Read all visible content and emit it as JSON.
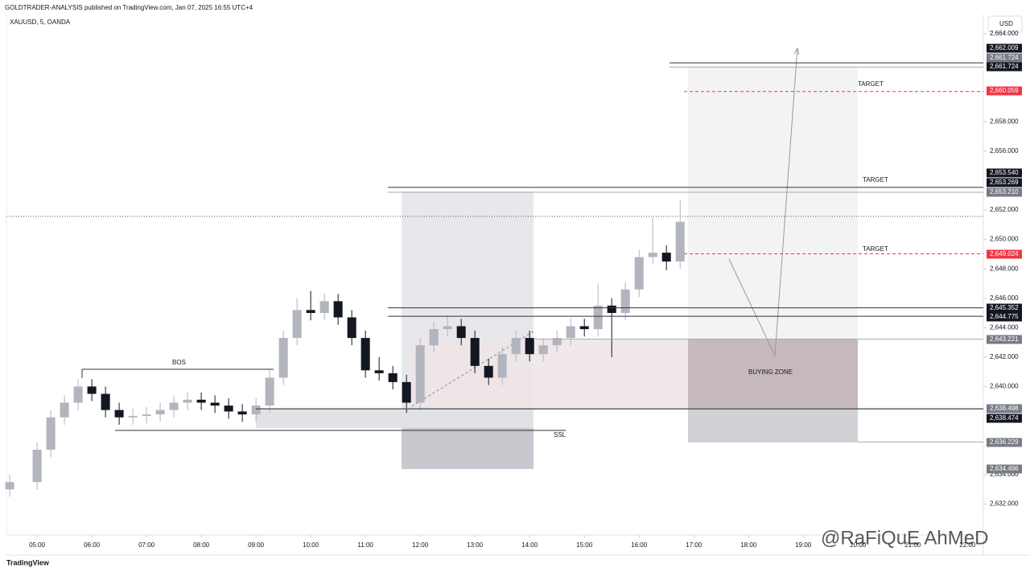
{
  "header": {
    "publisher": "GOLDTRADER-ANALYSIS published on TradingView.com, Jan 07, 2025 16:55 UTC+4",
    "symbol": "XAUUSD, 5, OANDA",
    "currency": "USD"
  },
  "chart_data": {
    "type": "candlestick",
    "x": [
      4.5,
      5,
      5.25,
      5.5,
      5.75,
      6,
      6.25,
      6.5,
      6.75,
      7,
      7.25,
      7.5,
      7.75,
      8,
      8.25,
      8.5,
      8.75,
      9,
      9.25,
      9.5,
      9.75,
      10,
      10.25,
      10.5,
      10.75,
      11,
      11.25,
      11.5,
      11.75,
      12,
      12.25,
      12.5,
      12.75,
      13,
      13.25,
      13.5,
      13.75,
      14,
      14.25,
      14.5,
      14.75,
      15,
      15.25,
      15.5,
      15.75,
      16,
      16.25,
      16.5,
      16.75
    ],
    "open": [
      2633.0,
      2633.5,
      2635.7,
      2637.9,
      2638.9,
      2640.0,
      2639.5,
      2638.4,
      2637.9,
      2638.0,
      2638.1,
      2638.4,
      2638.9,
      2639.1,
      2638.9,
      2638.7,
      2638.3,
      2638.1,
      2638.7,
      2640.6,
      2643.3,
      2645.2,
      2645.0,
      2645.8,
      2644.7,
      2643.3,
      2641.1,
      2640.9,
      2640.3,
      2638.9,
      2642.8,
      2643.9,
      2644.1,
      2643.3,
      2641.4,
      2640.6,
      2642.2,
      2643.3,
      2642.2,
      2642.8,
      2643.3,
      2644.1,
      2643.9,
      2645.5,
      2645.0,
      2646.6,
      2648.8,
      2649.1,
      2648.5
    ],
    "high": [
      2634.0,
      2636.2,
      2638.4,
      2639.4,
      2640.5,
      2640.5,
      2640.0,
      2638.9,
      2638.5,
      2638.6,
      2638.9,
      2639.4,
      2639.6,
      2639.6,
      2639.4,
      2639.2,
      2638.8,
      2639.2,
      2641.1,
      2643.8,
      2646.0,
      2646.5,
      2646.3,
      2646.3,
      2645.2,
      2643.8,
      2642.0,
      2641.4,
      2640.8,
      2643.3,
      2644.4,
      2644.8,
      2644.6,
      2643.8,
      2641.9,
      2642.7,
      2643.8,
      2643.8,
      2643.3,
      2643.8,
      2644.6,
      2644.6,
      2647.0,
      2646.0,
      2647.1,
      2649.3,
      2651.5,
      2649.6,
      2652.7
    ],
    "low": [
      2632.5,
      2633.0,
      2635.2,
      2637.4,
      2638.4,
      2639.0,
      2637.9,
      2637.4,
      2637.4,
      2637.5,
      2637.6,
      2637.9,
      2638.4,
      2638.4,
      2638.2,
      2637.8,
      2637.6,
      2637.6,
      2638.2,
      2640.1,
      2642.8,
      2644.5,
      2644.5,
      2644.2,
      2642.8,
      2640.6,
      2640.4,
      2639.8,
      2638.2,
      2638.4,
      2642.3,
      2643.4,
      2642.8,
      2640.9,
      2640.1,
      2640.1,
      2641.7,
      2641.7,
      2641.7,
      2642.3,
      2642.8,
      2643.4,
      2643.4,
      2642.0,
      2644.5,
      2646.1,
      2648.3,
      2647.9,
      2648.0
    ],
    "close": [
      2633.5,
      2635.7,
      2637.9,
      2638.9,
      2640.0,
      2639.5,
      2638.4,
      2637.9,
      2638.0,
      2638.1,
      2638.4,
      2638.9,
      2639.1,
      2638.9,
      2638.7,
      2638.3,
      2638.1,
      2638.7,
      2640.6,
      2643.3,
      2645.2,
      2645.0,
      2645.8,
      2644.7,
      2643.3,
      2641.1,
      2640.9,
      2640.3,
      2638.9,
      2642.8,
      2643.9,
      2644.1,
      2643.3,
      2641.4,
      2640.6,
      2642.2,
      2643.3,
      2642.2,
      2642.8,
      2643.3,
      2644.1,
      2643.9,
      2645.5,
      2645.0,
      2646.6,
      2648.8,
      2649.1,
      2648.5,
      2651.2
    ],
    "up_color": "#b2b5be",
    "down_color": "#131722",
    "xlim": [
      4.44,
      22.29
    ],
    "xticks": [
      {
        "value": 5,
        "label": "05:00"
      },
      {
        "value": 6,
        "label": "06:00"
      },
      {
        "value": 7,
        "label": "07:00"
      },
      {
        "value": 8,
        "label": "08:00"
      },
      {
        "value": 9,
        "label": "09:00"
      },
      {
        "value": 10,
        "label": "10:00"
      },
      {
        "value": 11,
        "label": "11:00"
      },
      {
        "value": 12,
        "label": "12:00"
      },
      {
        "value": 13,
        "label": "13:00"
      },
      {
        "value": 14,
        "label": "14:00"
      },
      {
        "value": 15,
        "label": "15:00"
      },
      {
        "value": 16,
        "label": "16:00"
      },
      {
        "value": 17,
        "label": "17:00"
      },
      {
        "value": 18,
        "label": "18:00"
      },
      {
        "value": 19,
        "label": "19:00"
      },
      {
        "value": 20,
        "label": "20:00"
      },
      {
        "value": 21,
        "label": "21:00"
      },
      {
        "value": 22,
        "label": "22:00"
      }
    ],
    "ylim": [
      2629.9,
      2665.3
    ],
    "yticks": [
      {
        "value": 2632,
        "label": "2,632.000"
      },
      {
        "value": 2634,
        "label": "2,634.000"
      },
      {
        "value": 2640,
        "label": "2,640.000"
      },
      {
        "value": 2642,
        "label": "2,642.000"
      },
      {
        "value": 2644,
        "label": "2,644.000"
      },
      {
        "value": 2646,
        "label": "2,646.000"
      },
      {
        "value": 2648,
        "label": "2,648.000"
      },
      {
        "value": 2650,
        "label": "2,650.000"
      },
      {
        "value": 2652,
        "label": "2,652.000"
      },
      {
        "value": 2656,
        "label": "2,656.000"
      },
      {
        "value": 2658,
        "label": "2,658.000"
      },
      {
        "value": 2664,
        "label": "2,664.000"
      }
    ],
    "price_labels": [
      {
        "value": 2662.009,
        "label": "2,662.009",
        "color": "#131722"
      },
      {
        "value": 2661.724,
        "label": "2,661.724",
        "color": "#787b86"
      },
      {
        "value": 2661.724,
        "label": "2,661.724",
        "color": "#131722"
      },
      {
        "value": 2660.059,
        "label": "2,660.059",
        "color": "#f23645"
      },
      {
        "value": 2653.54,
        "label": "2,653.540",
        "color": "#131722"
      },
      {
        "value": 2653.269,
        "label": "2,653.269",
        "color": "#131722"
      },
      {
        "value": 2653.21,
        "label": "2,653.210",
        "color": "#787b86"
      },
      {
        "value": 2649.024,
        "label": "2,649.024",
        "color": "#f23645"
      },
      {
        "value": 2645.352,
        "label": "2,645.352",
        "color": "#131722"
      },
      {
        "value": 2644.775,
        "label": "2,644.775",
        "color": "#131722"
      },
      {
        "value": 2643.221,
        "label": "2,643.221",
        "color": "#787b86"
      },
      {
        "value": 2638.498,
        "label": "2,638.498",
        "color": "#787b86"
      },
      {
        "value": 2638.474,
        "label": "2,638.474",
        "color": "#131722"
      },
      {
        "value": 2636.229,
        "label": "2,636.229",
        "color": "#787b86"
      },
      {
        "value": 2634.496,
        "label": "2,634.496",
        "color": "#787b86"
      }
    ],
    "annotations": {
      "bos": "BOS",
      "ssl": "SSL",
      "target_1": "TARGET",
      "target_2": "TARGET",
      "target_3": "TARGET",
      "buying_zone": "BUYING ZONE"
    }
  },
  "footer": {
    "brand": "TradingView",
    "watermark": "@RaFiQuE AhMeD"
  }
}
